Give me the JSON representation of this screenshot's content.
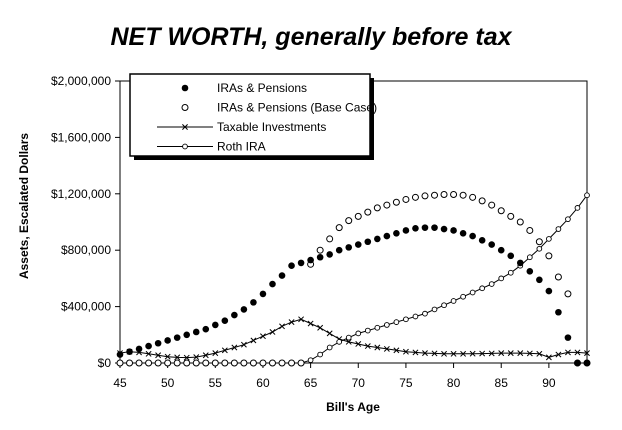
{
  "chart_data": {
    "type": "scatter",
    "title": "NET WORTH, generally before tax",
    "xlabel": "Bill's Age",
    "ylabel": "Assets, Escalated Dollars",
    "xlim": [
      45,
      94
    ],
    "ylim": [
      0,
      2000000
    ],
    "x_ticks": [
      45,
      50,
      55,
      60,
      65,
      70,
      75,
      80,
      85,
      90
    ],
    "x_tick_labels": [
      "45",
      "50",
      "55",
      "60",
      "65",
      "70",
      "75",
      "80",
      "85",
      "90"
    ],
    "y_ticks": [
      0,
      400000,
      800000,
      1200000,
      1600000,
      2000000
    ],
    "y_tick_labels": [
      "$0",
      "$400,000",
      "$800,000",
      "$1,200,000",
      "$1,600,000",
      "$2,000,000"
    ],
    "grid": false,
    "legend_position": "top-left",
    "x": [
      45,
      46,
      47,
      48,
      49,
      50,
      51,
      52,
      53,
      54,
      55,
      56,
      57,
      58,
      59,
      60,
      61,
      62,
      63,
      64,
      65,
      66,
      67,
      68,
      69,
      70,
      71,
      72,
      73,
      74,
      75,
      76,
      77,
      78,
      79,
      80,
      81,
      82,
      83,
      84,
      85,
      86,
      87,
      88,
      89,
      90,
      91,
      92,
      93,
      94
    ],
    "series": [
      {
        "name": "IRAs & Pensions",
        "marker": "filled-circle",
        "line": false,
        "color": "#000000",
        "values": [
          60000,
          80000,
          100000,
          120000,
          140000,
          160000,
          180000,
          200000,
          220000,
          240000,
          270000,
          300000,
          340000,
          380000,
          430000,
          490000,
          560000,
          620000,
          690000,
          710000,
          730000,
          750000,
          770000,
          800000,
          820000,
          840000,
          860000,
          880000,
          900000,
          920000,
          940000,
          955000,
          960000,
          960000,
          950000,
          940000,
          920000,
          900000,
          870000,
          840000,
          800000,
          760000,
          710000,
          650000,
          590000,
          510000,
          360000,
          180000,
          0,
          0
        ]
      },
      {
        "name": "IRAs & Pensions (Base Case)",
        "marker": "open-circle",
        "line": false,
        "color": "#000000",
        "values": [
          0,
          0,
          0,
          0,
          0,
          0,
          0,
          0,
          0,
          0,
          0,
          0,
          0,
          0,
          0,
          0,
          0,
          0,
          0,
          0,
          700000,
          800000,
          880000,
          960000,
          1010000,
          1040000,
          1070000,
          1100000,
          1120000,
          1140000,
          1160000,
          1175000,
          1185000,
          1190000,
          1195000,
          1195000,
          1190000,
          1175000,
          1150000,
          1120000,
          1080000,
          1040000,
          1000000,
          940000,
          860000,
          760000,
          610000,
          490000,
          0,
          0
        ]
      },
      {
        "name": "Taxable Investments",
        "marker": "x",
        "line": true,
        "color": "#000000",
        "values": [
          70000,
          80000,
          75000,
          65000,
          55000,
          45000,
          40000,
          38000,
          42000,
          55000,
          70000,
          90000,
          110000,
          130000,
          160000,
          190000,
          220000,
          260000,
          290000,
          310000,
          280000,
          250000,
          210000,
          170000,
          150000,
          135000,
          120000,
          110000,
          100000,
          90000,
          80000,
          75000,
          70000,
          68000,
          65000,
          65000,
          65000,
          66000,
          67000,
          68000,
          70000,
          70000,
          70000,
          68000,
          65000,
          40000,
          60000,
          75000,
          75000,
          70000
        ]
      },
      {
        "name": "Roth IRA",
        "marker": "small-open-circle",
        "line": true,
        "color": "#000000",
        "values": [
          0,
          0,
          0,
          0,
          0,
          0,
          0,
          0,
          0,
          0,
          0,
          0,
          0,
          0,
          0,
          0,
          0,
          0,
          0,
          0,
          20000,
          60000,
          110000,
          150000,
          180000,
          210000,
          230000,
          250000,
          270000,
          290000,
          310000,
          330000,
          350000,
          380000,
          410000,
          440000,
          470000,
          500000,
          530000,
          560000,
          600000,
          640000,
          690000,
          750000,
          810000,
          880000,
          950000,
          1020000,
          1100000,
          1190000
        ]
      }
    ]
  }
}
